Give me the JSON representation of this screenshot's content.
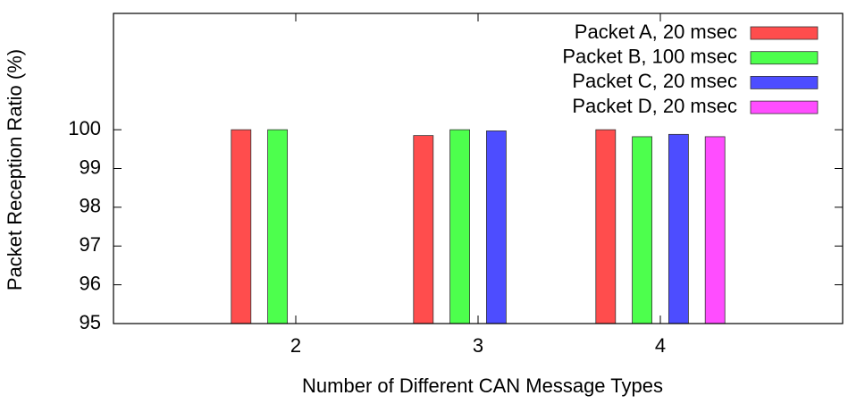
{
  "chart_data": {
    "type": "bar",
    "x_label": "Number of Different CAN Message Types",
    "y_label": "Packet Reception Ratio (%)",
    "x": [
      2,
      3,
      4
    ],
    "xlim": [
      1,
      5
    ],
    "xticks": [
      2,
      3,
      4
    ],
    "ylim": [
      95,
      103
    ],
    "yticks": [
      95,
      96,
      97,
      98,
      99,
      100
    ],
    "legend": "top-right",
    "series": [
      {
        "name": "Packet A, 20 msec",
        "color": "#ff4d4d",
        "values": [
          100,
          99.85,
          100
        ]
      },
      {
        "name": "Packet B, 100 msec",
        "color": "#4dff4d",
        "values": [
          100,
          100,
          99.82
        ]
      },
      {
        "name": "Packet C, 20 msec",
        "color": "#4d4dff",
        "values": [
          null,
          99.97,
          99.88
        ]
      },
      {
        "name": "Packet D, 20 msec",
        "color": "#ff4dff",
        "values": [
          null,
          null,
          99.82
        ]
      }
    ]
  }
}
